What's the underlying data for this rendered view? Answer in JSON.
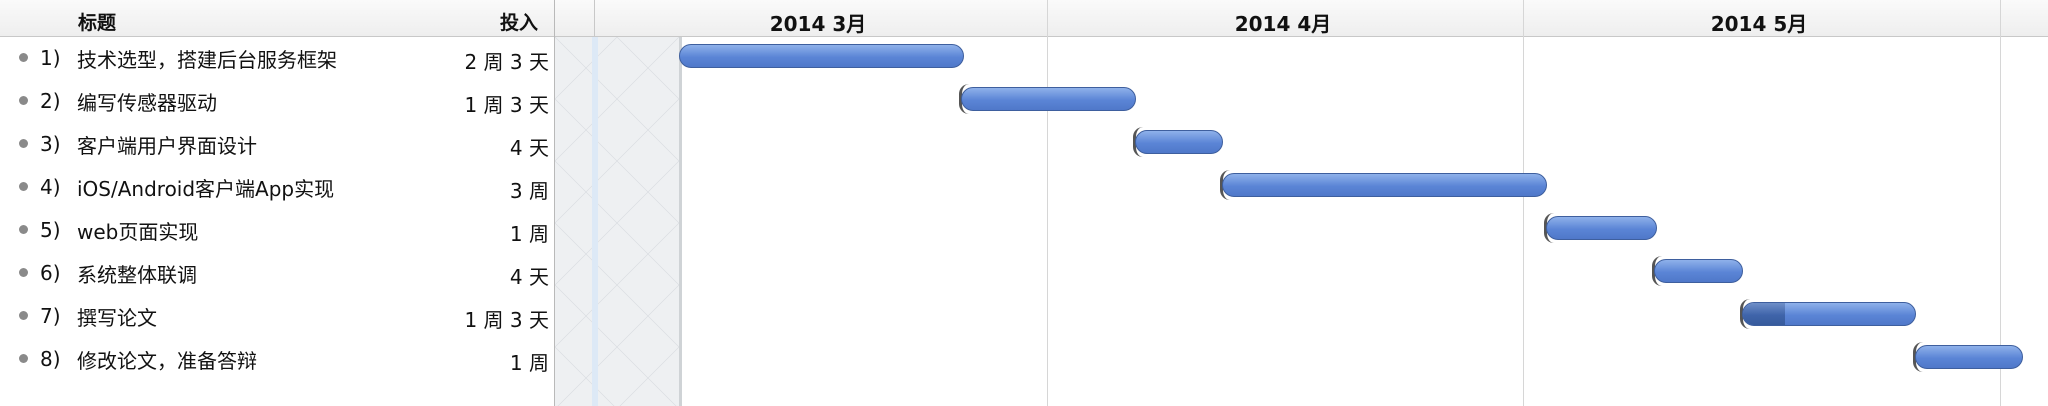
{
  "header": {
    "title_label": "标题",
    "effort_label": "投入"
  },
  "months": [
    {
      "label": "2014 3月"
    },
    {
      "label": "2014 4月"
    },
    {
      "label": "2014 5月"
    }
  ],
  "tasks": [
    {
      "num": "1)",
      "title": "技术选型，搭建后台服务框架",
      "effort": "2 周 3 天"
    },
    {
      "num": "2)",
      "title": "编写传感器驱动",
      "effort": "1 周 3 天"
    },
    {
      "num": "3)",
      "title": "客户端用户界面设计",
      "effort": "4 天"
    },
    {
      "num": "4)",
      "title": "iOS/Android客户端App实现",
      "effort": "3 周"
    },
    {
      "num": "5)",
      "title": "web页面实现",
      "effort": "1 周"
    },
    {
      "num": "6)",
      "title": "系统整体联调",
      "effort": "4 天"
    },
    {
      "num": "7)",
      "title": "撰写论文",
      "effort": "1 周 3 天"
    },
    {
      "num": "8)",
      "title": "修改论文，准备答辩",
      "effort": "1 周"
    }
  ],
  "colors": {
    "bar": "#5b85d6",
    "progress": "#3f64aa",
    "grid": "#d6d6d6"
  }
}
